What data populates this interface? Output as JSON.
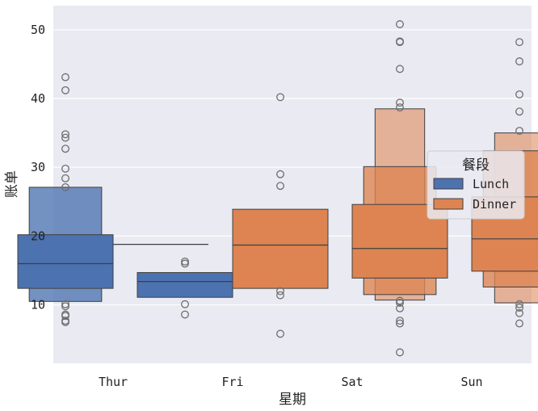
{
  "chart_data": {
    "type": "boxen",
    "title": "",
    "xlabel": "星期",
    "ylabel": "账单",
    "categories": [
      "Thur",
      "Fri",
      "Sat",
      "Sun"
    ],
    "ylim": [
      1.5,
      53.5
    ],
    "yticks": [
      10,
      20,
      30,
      40,
      50
    ],
    "grid": true,
    "legend": {
      "title": "餐段",
      "position": "right",
      "entries": [
        "Lunch",
        "Dinner"
      ]
    },
    "colors": {
      "Lunch": "#4c72b0",
      "Dinner": "#dd8452",
      "background": "#eaeaf2",
      "grid": "#ffffff",
      "outline": "#3f3f3f",
      "flier": "#6e6e6e"
    },
    "series": [
      {
        "name": "Lunch",
        "groups": [
          {
            "category": "Thur",
            "median": 16.0,
            "boxes": [
              [
                12.4,
                20.2
              ],
              [
                10.5,
                27.1
              ]
            ],
            "outliers": [
              43.1,
              41.2,
              34.8,
              34.3,
              32.7,
              29.8,
              28.4,
              27.1,
              10.1,
              9.8,
              8.6,
              8.4,
              7.7,
              7.5
            ]
          },
          {
            "category": "Fri",
            "median": 13.4,
            "boxes": [
              [
                11.1,
                14.7
              ]
            ],
            "outliers": [
              16.3,
              16.0,
              10.1,
              8.6
            ]
          }
        ]
      },
      {
        "name": "Dinner",
        "groups": [
          {
            "category": "Thur",
            "median": 18.8,
            "boxes": [],
            "outliers": []
          },
          {
            "category": "Fri",
            "median": 18.7,
            "boxes": [
              [
                12.4,
                23.9
              ]
            ],
            "outliers": [
              40.2,
              29.0,
              27.3,
              12.0,
              11.4,
              5.8
            ]
          },
          {
            "category": "Sat",
            "median": 18.2,
            "boxes": [
              [
                13.9,
                24.6
              ],
              [
                11.5,
                30.1
              ],
              [
                10.7,
                38.5
              ]
            ],
            "outliers": [
              50.8,
              48.3,
              48.2,
              44.3,
              39.4,
              38.7,
              10.6,
              10.3,
              9.5,
              7.7,
              7.3,
              3.1
            ]
          },
          {
            "category": "Sun",
            "median": 19.6,
            "boxes": [
              [
                14.9,
                25.7
              ],
              [
                12.6,
                32.4
              ],
              [
                10.3,
                35.0
              ]
            ],
            "outliers": [
              48.2,
              45.4,
              40.6,
              38.1,
              35.3,
              10.1,
              9.6,
              8.8,
              7.3
            ]
          }
        ]
      }
    ]
  }
}
